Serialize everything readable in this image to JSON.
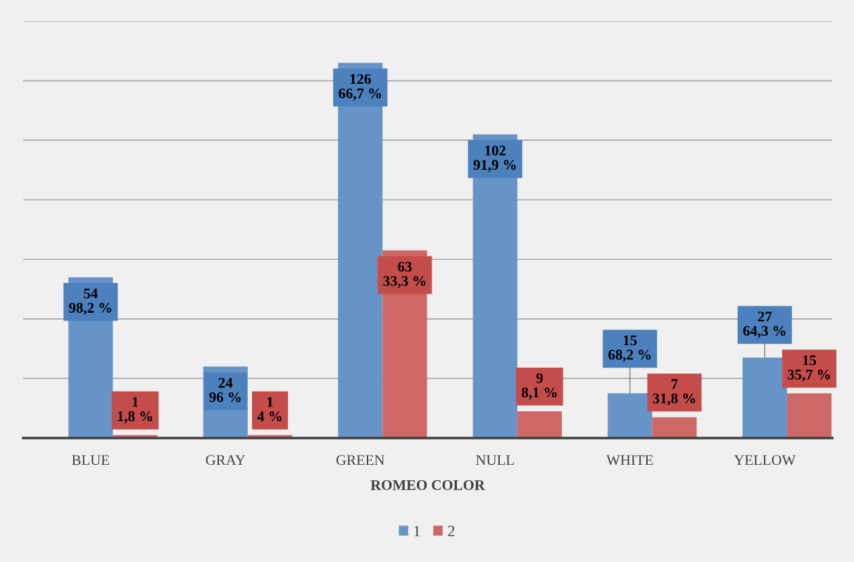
{
  "chart_data": {
    "type": "bar",
    "xlabel": "ROMEO COLOR",
    "categories": [
      "BLUE",
      "GRAY",
      "GREEN",
      "NULL",
      "WHITE",
      "YELLOW"
    ],
    "series": [
      {
        "name": "1",
        "color": "#6794c8",
        "values": [
          54,
          24,
          126,
          102,
          15,
          27
        ],
        "value_labels": [
          "54\n98,2 %",
          "24\n96 %",
          "126\n66,7 %",
          "102\n91,9 %",
          "15\n68,2 %",
          "27\n64,3 %"
        ]
      },
      {
        "name": "2",
        "color": "#cd6866",
        "values": [
          1,
          1,
          63,
          9,
          7,
          15
        ],
        "value_labels": [
          "1\n1,8 %",
          "1\n4 %",
          "63\n33,3 %",
          "9\n8,1 %",
          "7\n31,8 %",
          "15\n35,7 %"
        ]
      }
    ],
    "ylim": [
      0,
      140
    ],
    "yticks": [
      {
        "value": 0,
        "label": null
      },
      {
        "value": 20,
        "label": null
      },
      {
        "value": 40,
        "label": null
      },
      {
        "value": 60,
        "label": null
      },
      {
        "value": 80,
        "label": null
      },
      {
        "value": 100,
        "label": null
      },
      {
        "value": 120,
        "label": null
      },
      {
        "value": 140,
        "label": null
      }
    ],
    "tick_labels": "x",
    "grid": "y",
    "legend": "bottom"
  }
}
